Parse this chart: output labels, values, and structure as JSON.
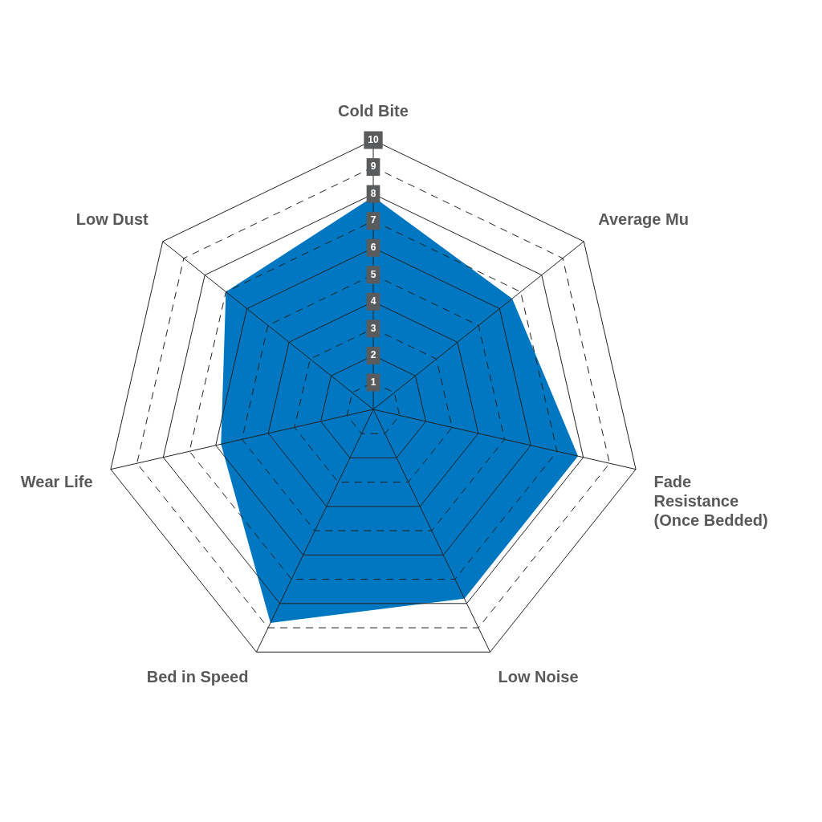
{
  "chart_data": {
    "type": "radar",
    "categories": [
      "Cold Bite",
      "Average Mu",
      "Fade Resistance (Once Bedded)",
      "Low Noise",
      "Bed in Speed",
      "Wear Life",
      "Low Dust"
    ],
    "series": [
      {
        "color": "#0077c0",
        "values": [
          7.9,
          6.6,
          7.8,
          7.8,
          8.8,
          5.8,
          7.0
        ]
      }
    ],
    "ylim": [
      0,
      10
    ],
    "yticks": [
      1,
      2,
      3,
      4,
      5,
      6,
      7,
      8,
      9,
      10
    ],
    "grid": true,
    "legend": false
  }
}
